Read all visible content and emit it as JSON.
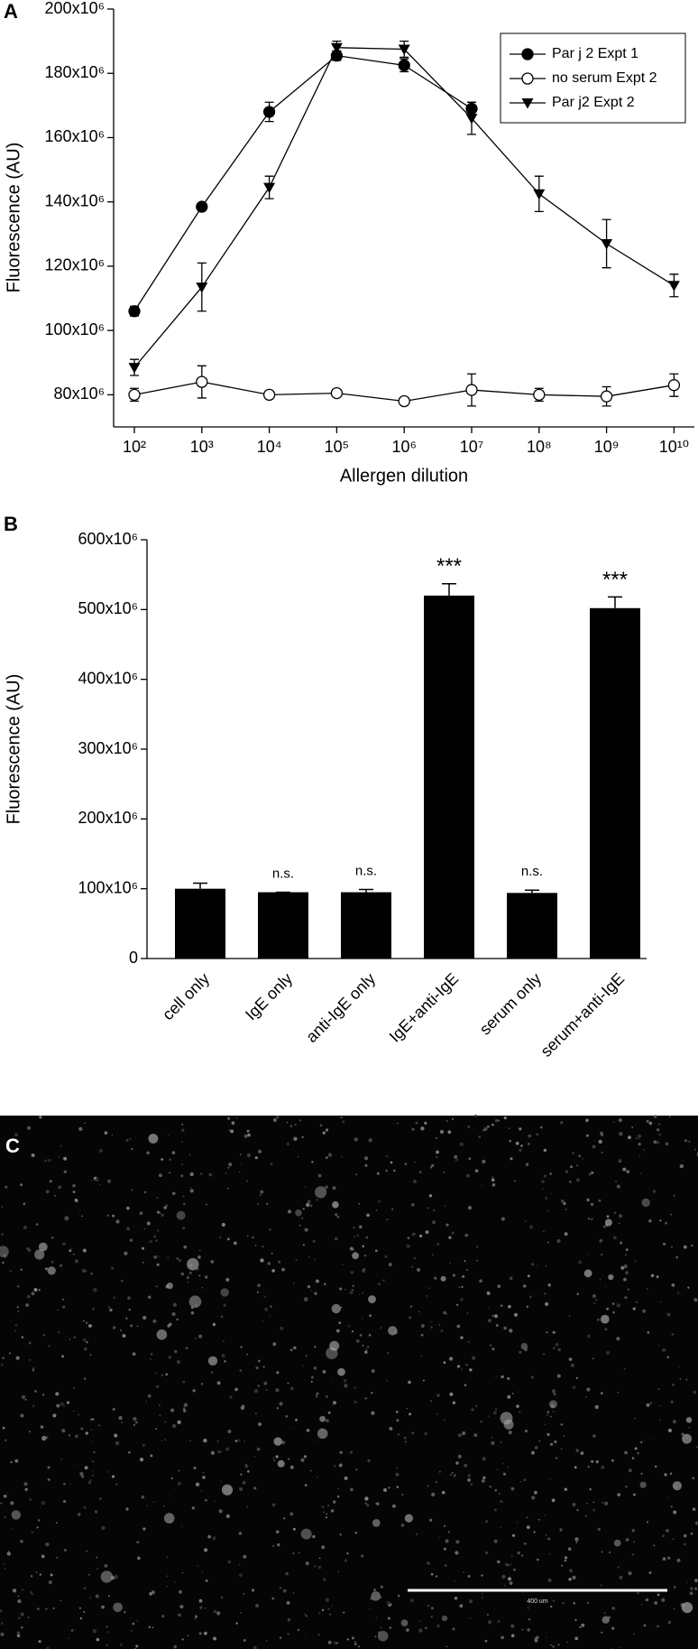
{
  "chart_data": [
    {
      "type": "line",
      "panel": "A",
      "xlabel": "Allergen dilution",
      "ylabel": "Fluorescence (AU)",
      "categories": [
        "10²",
        "10³",
        "10⁴",
        "10⁵",
        "10⁶",
        "10⁷",
        "10⁸",
        "10⁹",
        "10¹⁰"
      ],
      "series": [
        {
          "name": "Par j 2 Expt 1",
          "color": "#000000",
          "marker": "filled-circle",
          "values": [
            106000000,
            138500000,
            168000000,
            185500000,
            182500000,
            169000000,
            null,
            null,
            null
          ],
          "errors": [
            1500000,
            1000000,
            3000000,
            1500000,
            2000000,
            2000000,
            null,
            null,
            null
          ]
        },
        {
          "name": "no serum Expt 2",
          "color": "#000000",
          "marker": "open-circle",
          "values": [
            80000000,
            84000000,
            80000000,
            80500000,
            78000000,
            81500000,
            80000000,
            79500000,
            83000000
          ],
          "errors": [
            2000000,
            5000000,
            1000000,
            1000000,
            1000000,
            5000000,
            2000000,
            3000000,
            3500000
          ]
        },
        {
          "name": "Par j2 Expt 2",
          "color": "#000000",
          "marker": "triangle-down",
          "values": [
            88500000,
            113500000,
            144500000,
            188000000,
            187500000,
            166000000,
            142500000,
            127000000,
            114000000
          ],
          "errors": [
            2500000,
            7500000,
            3500000,
            2000000,
            2500000,
            5000000,
            5500000,
            7500000,
            3500000
          ]
        }
      ],
      "ylim": [
        70000000,
        200000000
      ],
      "yticks": [
        {
          "value": 80000000,
          "label": "80x10⁶"
        },
        {
          "value": 100000000,
          "label": "100x10⁶"
        },
        {
          "value": 120000000,
          "label": "120x10⁶"
        },
        {
          "value": 140000000,
          "label": "140x10⁶"
        },
        {
          "value": 160000000,
          "label": "160x10⁶"
        },
        {
          "value": 180000000,
          "label": "180x10⁶"
        },
        {
          "value": 200000000,
          "label": "200x10⁶"
        }
      ],
      "legend": "upper right",
      "grid": false
    },
    {
      "type": "bar",
      "panel": "B",
      "ylabel": "Fluorescence (AU)",
      "categories": [
        "cell only",
        "IgE only",
        "anti-IgE only",
        "IgE+anti-IgE",
        "serum only",
        "serum+anti-IgE"
      ],
      "values": [
        100000000,
        95000000,
        95000000,
        520000000,
        94000000,
        502000000
      ],
      "errors": [
        8000000,
        0,
        4000000,
        17000000,
        4000000,
        16000000
      ],
      "annotations": [
        null,
        "n.s.",
        "n.s.",
        "***",
        "n.s.",
        "***"
      ],
      "color": "#000000",
      "ylim": [
        0,
        600000000
      ],
      "yticks": [
        0,
        {
          "value": 100000000,
          "label": "100x10⁶"
        },
        {
          "value": 200000000,
          "label": "200x10⁶"
        },
        {
          "value": 300000000,
          "label": "300x10⁶"
        },
        {
          "value": 400000000,
          "label": "400x10⁶"
        },
        {
          "value": 500000000,
          "label": "500x10⁶"
        },
        {
          "value": 600000000,
          "label": "600x10⁶"
        }
      ],
      "grid": false
    }
  ],
  "image_panel": {
    "panel": "C",
    "scale_bar_label": "400 um"
  }
}
